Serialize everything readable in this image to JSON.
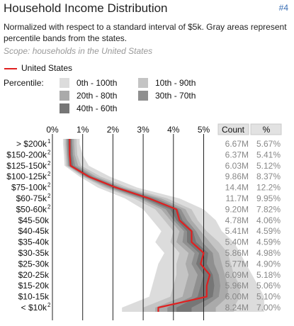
{
  "title": "Household Income Distribution",
  "figure_number": "#4",
  "subtitle": "Normalized with respect to a standard interval of $5k. Gray areas represent percentile bands from the states.",
  "scope": "Scope: households in the United States",
  "legend": {
    "series_label": "United States",
    "series_color": "#e02020",
    "percentile_label": "Percentile:",
    "bands": [
      {
        "label": "0th - 100th",
        "color": "#dcdcdc"
      },
      {
        "label": "10th - 90th",
        "color": "#c4c4c4"
      },
      {
        "label": "20th - 80th",
        "color": "#aaaaaa"
      },
      {
        "label": "30th - 70th",
        "color": "#8f8f8f"
      },
      {
        "label": "40th - 60th",
        "color": "#767676"
      }
    ]
  },
  "chart_data": {
    "type": "area",
    "orientation": "horizontal",
    "x_ticks": [
      "0%",
      "1%",
      "2%",
      "3%",
      "4%",
      "5%"
    ],
    "xlim": [
      0,
      6.5
    ],
    "grid": true,
    "column_headers": [
      "Count",
      "%"
    ],
    "categories": [
      {
        "label": "> $200k",
        "sup": "1",
        "count": "6.67M",
        "pct": "5.67%"
      },
      {
        "label": "$150-200k",
        "sup": "2",
        "count": "6.37M",
        "pct": "5.41%"
      },
      {
        "label": "$125-150k",
        "sup": "2",
        "count": "6.03M",
        "pct": "5.12%"
      },
      {
        "label": "$100-125k",
        "sup": "2",
        "count": "9.86M",
        "pct": "8.37%"
      },
      {
        "label": "$75-100k",
        "sup": "2",
        "count": "14.4M",
        "pct": "12.2%"
      },
      {
        "label": "$60-75k",
        "sup": "2",
        "count": "11.7M",
        "pct": "9.95%"
      },
      {
        "label": "$50-60k",
        "sup": "2",
        "count": "9.20M",
        "pct": "7.82%"
      },
      {
        "label": "$45-50k",
        "sup": "",
        "count": "4.78M",
        "pct": "4.06%"
      },
      {
        "label": "$40-45k",
        "sup": "",
        "count": "5.41M",
        "pct": "4.59%"
      },
      {
        "label": "$35-40k",
        "sup": "",
        "count": "5.40M",
        "pct": "4.59%"
      },
      {
        "label": "$30-35k",
        "sup": "",
        "count": "5.86M",
        "pct": "4.98%"
      },
      {
        "label": "$25-30k",
        "sup": "",
        "count": "5.77M",
        "pct": "4.90%"
      },
      {
        "label": "$20-25k",
        "sup": "",
        "count": "6.09M",
        "pct": "5.18%"
      },
      {
        "label": "$15-20k",
        "sup": "",
        "count": "5.96M",
        "pct": "5.06%"
      },
      {
        "label": "$10-15k",
        "sup": "",
        "count": "6.00M",
        "pct": "5.10%"
      },
      {
        "label": "< $10k",
        "sup": "2",
        "count": "8.24M",
        "pct": "7.00%"
      }
    ],
    "series": [
      {
        "name": "United States",
        "color": "#e02020",
        "values": [
          0.57,
          0.57,
          0.6,
          1.2,
          2.1,
          3.2,
          4.1,
          4.2,
          4.6,
          4.6,
          5.0,
          4.9,
          5.2,
          5.1,
          5.1,
          3.5
        ]
      }
    ],
    "bands": [
      {
        "name": "0th - 100th",
        "low": [
          0.35,
          0.38,
          0.4,
          0.9,
          1.5,
          2.4,
          3.0,
          3.3,
          3.6,
          3.4,
          3.7,
          3.5,
          3.4,
          3.3,
          3.2,
          2.3
        ],
        "high": [
          0.9,
          1.0,
          1.2,
          1.9,
          2.8,
          4.2,
          5.0,
          5.4,
          5.6,
          6.0,
          6.2,
          6.4,
          6.6,
          6.8,
          7.0,
          7.0
        ]
      },
      {
        "name": "10th - 90th",
        "low": [
          0.4,
          0.43,
          0.45,
          1.0,
          1.7,
          2.7,
          3.4,
          3.7,
          4.0,
          3.9,
          4.2,
          4.1,
          4.1,
          4.0,
          3.9,
          3.0
        ],
        "high": [
          0.8,
          0.82,
          0.95,
          1.6,
          2.5,
          3.8,
          4.6,
          4.8,
          5.1,
          5.5,
          5.8,
          5.9,
          6.0,
          6.2,
          6.2,
          6.0
        ]
      },
      {
        "name": "20th - 80th",
        "low": [
          0.45,
          0.47,
          0.5,
          1.05,
          1.8,
          2.85,
          3.6,
          3.9,
          4.2,
          4.1,
          4.5,
          4.4,
          4.5,
          4.4,
          4.3,
          3.4
        ],
        "high": [
          0.72,
          0.74,
          0.85,
          1.45,
          2.35,
          3.6,
          4.4,
          4.6,
          4.9,
          5.2,
          5.5,
          5.6,
          5.7,
          5.8,
          5.8,
          5.4
        ]
      },
      {
        "name": "30th - 70th",
        "low": [
          0.48,
          0.5,
          0.53,
          1.1,
          1.9,
          2.95,
          3.75,
          4.0,
          4.35,
          4.3,
          4.7,
          4.6,
          4.8,
          4.7,
          4.6,
          3.8
        ],
        "high": [
          0.66,
          0.68,
          0.75,
          1.35,
          2.25,
          3.45,
          4.25,
          4.45,
          4.75,
          4.95,
          5.3,
          5.35,
          5.5,
          5.55,
          5.5,
          5.0
        ]
      },
      {
        "name": "40th - 60th",
        "low": [
          0.52,
          0.54,
          0.57,
          1.15,
          2.0,
          3.05,
          3.9,
          4.1,
          4.45,
          4.45,
          4.85,
          4.75,
          5.0,
          4.9,
          4.8,
          4.1
        ],
        "high": [
          0.62,
          0.63,
          0.68,
          1.28,
          2.18,
          3.3,
          4.15,
          4.3,
          4.65,
          4.75,
          5.15,
          5.1,
          5.3,
          5.35,
          5.3,
          4.6
        ]
      }
    ]
  }
}
